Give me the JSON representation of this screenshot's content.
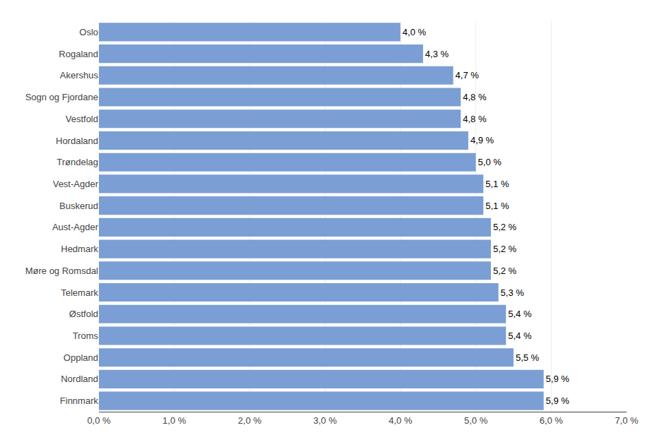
{
  "chart_data": {
    "type": "bar",
    "orientation": "horizontal",
    "categories": [
      "Finnmark",
      "Nordland",
      "Oppland",
      "Troms",
      "Østfold",
      "Telemark",
      "Møre og Romsdal",
      "Hedmark",
      "Aust-Agder",
      "Buskerud",
      "Vest-Agder",
      "Trøndelag",
      "Hordaland",
      "Vestfold",
      "Sogn og Fjordane",
      "Akershus",
      "Rogaland",
      "Oslo"
    ],
    "values": [
      5.9,
      5.9,
      5.5,
      5.4,
      5.4,
      5.3,
      5.2,
      5.2,
      5.2,
      5.1,
      5.1,
      5.0,
      4.9,
      4.8,
      4.8,
      4.7,
      4.3,
      4.0
    ],
    "value_labels": [
      "5,9 %",
      "5,9 %",
      "5,5 %",
      "5,4 %",
      "5,4 %",
      "5,3 %",
      "5,2 %",
      "5,2 %",
      "5,2 %",
      "5,1 %",
      "5,1 %",
      "5,0 %",
      "4,9 %",
      "4,8 %",
      "4,8 %",
      "4,7 %",
      "4,3 %",
      "4,0 %"
    ],
    "data_labels": true,
    "color": "#7b9fd4",
    "xlim": [
      0,
      7.0
    ],
    "xticks": [
      {
        "value": 0.0,
        "label": "0,0 %"
      },
      {
        "value": 1.0,
        "label": "1,0 %"
      },
      {
        "value": 2.0,
        "label": "2,0 %"
      },
      {
        "value": 3.0,
        "label": "3,0 %"
      },
      {
        "value": 4.0,
        "label": "4,0 %"
      },
      {
        "value": 5.0,
        "label": "5,0 %"
      },
      {
        "value": 6.0,
        "label": "6,0 %"
      },
      {
        "value": 7.0,
        "label": "7,0 %"
      }
    ],
    "grid": true
  }
}
